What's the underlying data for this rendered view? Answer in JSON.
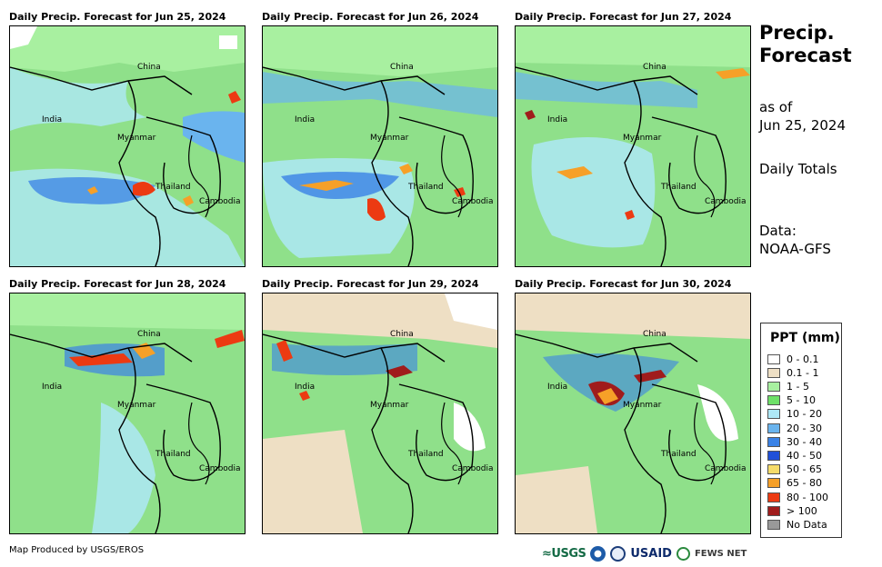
{
  "panels": [
    {
      "title": "Daily Precip. Forecast for Jun 25, 2024"
    },
    {
      "title": "Daily Precip. Forecast for Jun 26, 2024"
    },
    {
      "title": "Daily Precip. Forecast for Jun 27, 2024"
    },
    {
      "title": "Daily Precip. Forecast for Jun 28, 2024"
    },
    {
      "title": "Daily Precip. Forecast for Jun 29, 2024"
    },
    {
      "title": "Daily Precip. Forecast for Jun 30, 2024"
    }
  ],
  "map_labels": {
    "china": "China",
    "india": "India",
    "myanmar": "Myanmar",
    "thailand": "Thailand",
    "cambodia": "Cambodia"
  },
  "side": {
    "title_line1": "Precip.",
    "title_line2": "Forecast",
    "asof_line1": "as of",
    "asof_line2": "Jun 25, 2024",
    "totals": "Daily Totals",
    "data_line1": "Data:",
    "data_line2": "NOAA-GFS"
  },
  "legend": {
    "title": "PPT (mm)",
    "items": [
      {
        "label": "0 - 0.1",
        "color": "#ffffff"
      },
      {
        "label": "0.1 - 1",
        "color": "#eedfc4"
      },
      {
        "label": "1 - 5",
        "color": "#a8f0a0"
      },
      {
        "label": "5 - 10",
        "color": "#6ee068"
      },
      {
        "label": "10 - 20",
        "color": "#aee8f6"
      },
      {
        "label": "20 - 30",
        "color": "#6ab4ee"
      },
      {
        "label": "30 - 40",
        "color": "#3a82e6"
      },
      {
        "label": "40 - 50",
        "color": "#2050d8"
      },
      {
        "label": "50 - 65",
        "color": "#f6dc6a"
      },
      {
        "label": "65 - 80",
        "color": "#f6a028"
      },
      {
        "label": "80 - 100",
        "color": "#ec3a12"
      },
      {
        "label": "> 100",
        "color": "#a01c1c"
      },
      {
        "label": "No Data",
        "color": "#999999"
      }
    ]
  },
  "footer": {
    "credit": "Map Produced by USGS/EROS",
    "logo_usgs": "USGS",
    "logo_usaid": "USAID",
    "logo_fews": "FEWS NET"
  }
}
